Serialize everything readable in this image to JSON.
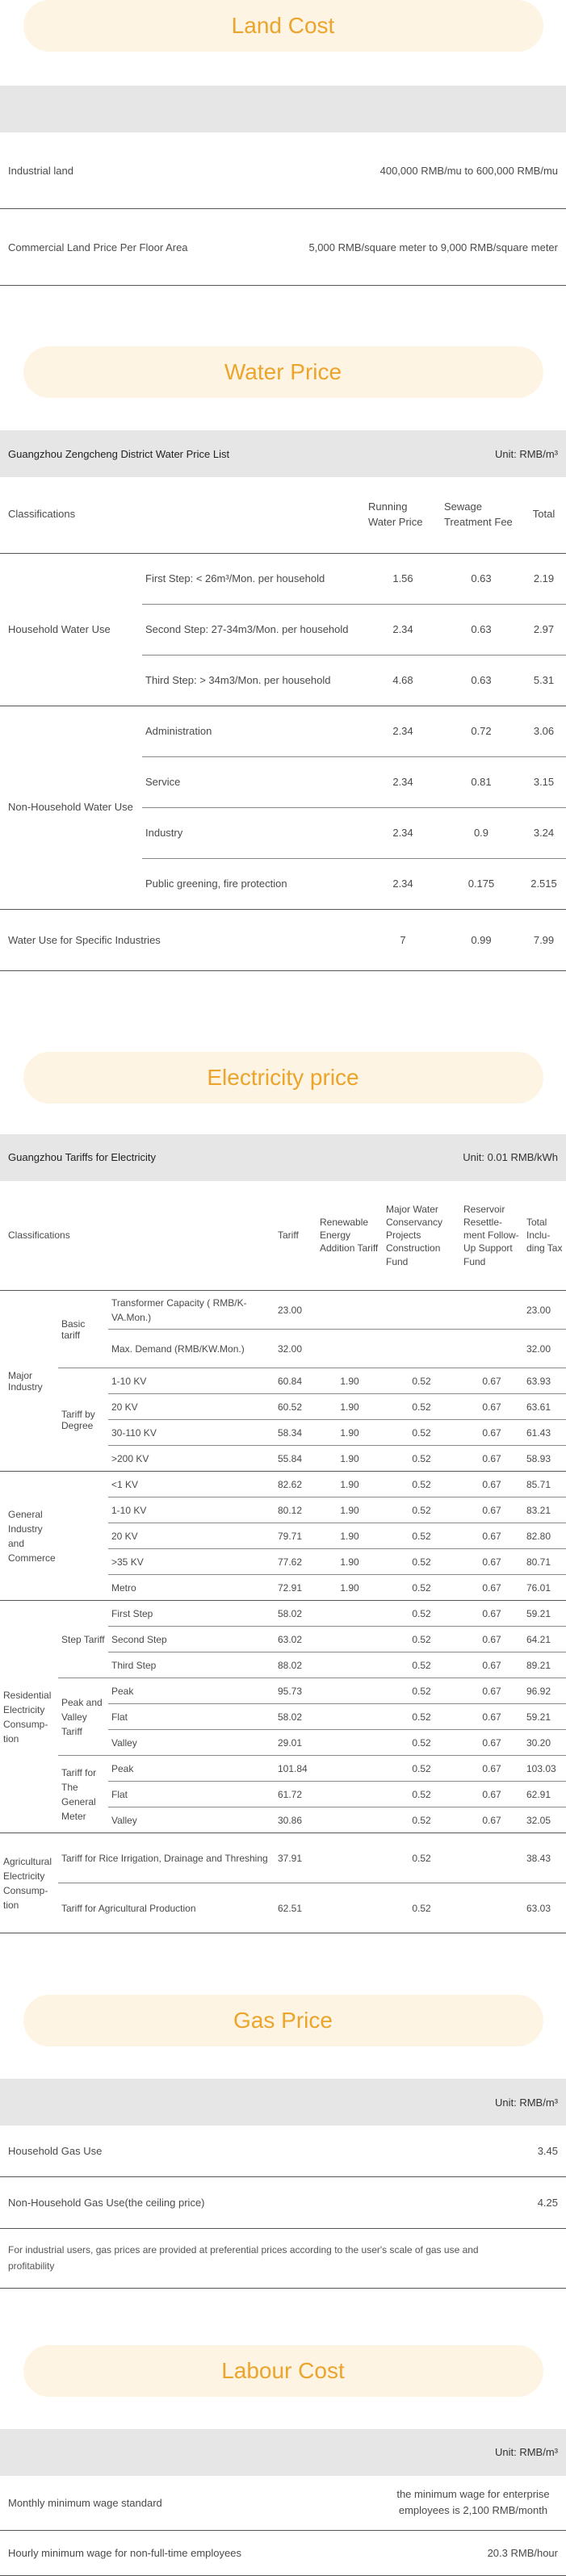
{
  "land": {
    "banner": "Land Cost",
    "rows": [
      {
        "label": "Industrial land",
        "value": "400,000 RMB/mu to 600,000 RMB/mu"
      },
      {
        "label": "Commercial Land Price Per Floor Area",
        "value": "5,000 RMB/square meter to 9,000 RMB/square meter"
      }
    ]
  },
  "water": {
    "banner": "Water Price",
    "table_title": "Guangzhou Zengcheng District Water Price List",
    "unit": "Unit: RMB/m³",
    "headers": {
      "classifications": "Classifications",
      "running": "Running Water Price",
      "sewage": "Sewage Treatment Fee",
      "total": "Total"
    },
    "household": {
      "label": "Household Water Use",
      "rows": [
        {
          "name": "First Step: < 26m³/Mon. per household",
          "running": "1.56",
          "sewage": "0.63",
          "total": "2.19"
        },
        {
          "name": "Second Step: 27-34m3/Mon. per household",
          "running": "2.34",
          "sewage": "0.63",
          "total": "2.97"
        },
        {
          "name": "Third Step: > 34m3/Mon. per household",
          "running": "4.68",
          "sewage": "0.63",
          "total": "5.31"
        }
      ]
    },
    "nonhousehold": {
      "label": "Non-Household Water Use",
      "rows": [
        {
          "name": "Administration",
          "running": "2.34",
          "sewage": "0.72",
          "total": "3.06"
        },
        {
          "name": "Service",
          "running": "2.34",
          "sewage": "0.81",
          "total": "3.15"
        },
        {
          "name": "Industry",
          "running": "2.34",
          "sewage": "0.9",
          "total": "3.24"
        },
        {
          "name": "Public greening, fire protection",
          "running": "2.34",
          "sewage": "0.175",
          "total": "2.515"
        }
      ]
    },
    "special": {
      "label": "Water Use for Specific Industries",
      "running": "7",
      "sewage": "0.99",
      "total": "7.99"
    }
  },
  "electricity": {
    "banner": "Electricity price",
    "table_title": "Guangzhou Tariffs for Electricity",
    "unit": "Unit: 0.01 RMB/kWh",
    "headers": {
      "classifications": "Classifications",
      "tariff": "Tariff",
      "renewable": "Renewable Energy Addition Tariff",
      "water": "Major Water Conservancy Projects Construction Fund",
      "reservoir": "Reservoir Resettle-ment Follow-Up Support Fund",
      "total": "Total Inclu-ding Tax"
    },
    "major": {
      "label": "Major Industry",
      "basic_label": "Basic tariff",
      "basic_rows": [
        {
          "name": "Transformer Capacity ( RMB/K- VA.Mon.)",
          "tariff": "23.00",
          "ren": "",
          "wat": "",
          "res": "",
          "total": "23.00"
        },
        {
          "name": "Max. Demand (RMB/KW.Mon.)",
          "tariff": "32.00",
          "ren": "",
          "wat": "",
          "res": "",
          "total": "32.00"
        }
      ],
      "degree_label": "Tariff by Degree",
      "degree_rows": [
        {
          "name": "1-10 KV",
          "tariff": "60.84",
          "ren": "1.90",
          "wat": "0.52",
          "res": "0.67",
          "total": "63.93"
        },
        {
          "name": "20 KV",
          "tariff": "60.52",
          "ren": "1.90",
          "wat": "0.52",
          "res": "0.67",
          "total": "63.61"
        },
        {
          "name": "30-110 KV",
          "tariff": "58.34",
          "ren": "1.90",
          "wat": "0.52",
          "res": "0.67",
          "total": "61.43"
        },
        {
          "name": ">200 KV",
          "tariff": "55.84",
          "ren": "1.90",
          "wat": "0.52",
          "res": "0.67",
          "total": "58.93"
        }
      ]
    },
    "general": {
      "label": "General Industry and Commerce",
      "rows": [
        {
          "name": "<1 KV",
          "tariff": "82.62",
          "ren": "1.90",
          "wat": "0.52",
          "res": "0.67",
          "total": "85.71"
        },
        {
          "name": "1-10 KV",
          "tariff": "80.12",
          "ren": "1.90",
          "wat": "0.52",
          "res": "0.67",
          "total": "83.21"
        },
        {
          "name": "20 KV",
          "tariff": "79.71",
          "ren": "1.90",
          "wat": "0.52",
          "res": "0.67",
          "total": "82.80"
        },
        {
          "name": ">35 KV",
          "tariff": "77.62",
          "ren": "1.90",
          "wat": "0.52",
          "res": "0.67",
          "total": "80.71"
        },
        {
          "name": "Metro",
          "tariff": "72.91",
          "ren": "1.90",
          "wat": "0.52",
          "res": "0.67",
          "total": "76.01"
        }
      ]
    },
    "residential": {
      "label": "Residential Electricity Consump-tion",
      "step_label": "Step Tariff",
      "step_rows": [
        {
          "name": "First Step",
          "tariff": "58.02",
          "wat": "0.52",
          "res": "0.67",
          "total": "59.21"
        },
        {
          "name": "Second Step",
          "tariff": "63.02",
          "wat": "0.52",
          "res": "0.67",
          "total": "64.21"
        },
        {
          "name": "Third Step",
          "tariff": "88.02",
          "wat": "0.52",
          "res": "0.67",
          "total": "89.21"
        }
      ],
      "pv_label": "Peak and Valley Tariff",
      "pv_rows": [
        {
          "name": "Peak",
          "tariff": "95.73",
          "wat": "0.52",
          "res": "0.67",
          "total": "96.92"
        },
        {
          "name": "Flat",
          "tariff": "58.02",
          "wat": "0.52",
          "res": "0.67",
          "total": "59.21"
        },
        {
          "name": "Valley",
          "tariff": "29.01",
          "wat": "0.52",
          "res": "0.67",
          "total": "30.20"
        }
      ],
      "gm_label": "Tariff for The General Meter",
      "gm_rows": [
        {
          "name": "Peak",
          "tariff": "101.84",
          "wat": "0.52",
          "res": "0.67",
          "total": "103.03"
        },
        {
          "name": "Flat",
          "tariff": "61.72",
          "wat": "0.52",
          "res": "0.67",
          "total": "62.91"
        },
        {
          "name": "Valley",
          "tariff": "30.86",
          "wat": "0.52",
          "res": "0.67",
          "total": "32.05"
        }
      ]
    },
    "agricultural": {
      "label": "Agricultural Electricity Consump-tion",
      "rows": [
        {
          "name": "Tariff for Rice Irrigation, Drainage and Threshing",
          "tariff": "37.91",
          "wat": "0.52",
          "total": "38.43"
        },
        {
          "name": "Tariff for Agricultural Production",
          "tariff": "62.51",
          "wat": "0.52",
          "total": "63.03"
        }
      ]
    }
  },
  "gas": {
    "banner": "Gas Price",
    "unit": "Unit: RMB/m³",
    "rows": [
      {
        "label": "Household Gas Use",
        "value": "3.45"
      },
      {
        "label": "Non-Household Gas Use(the ceiling price)",
        "value": "4.25"
      }
    ],
    "note": "For industrial users, gas prices are provided at preferential prices according to the user's scale of gas use and profitability"
  },
  "labour": {
    "banner": "Labour Cost",
    "unit": "Unit: RMB/m³",
    "rows": [
      {
        "label": "Monthly minimum wage standard",
        "value": "the minimum wage for enterprise employees is 2,100 RMB/month"
      },
      {
        "label": "Hourly minimum wage for non-full-time employees",
        "value": "20.3 RMB/hour"
      }
    ]
  }
}
